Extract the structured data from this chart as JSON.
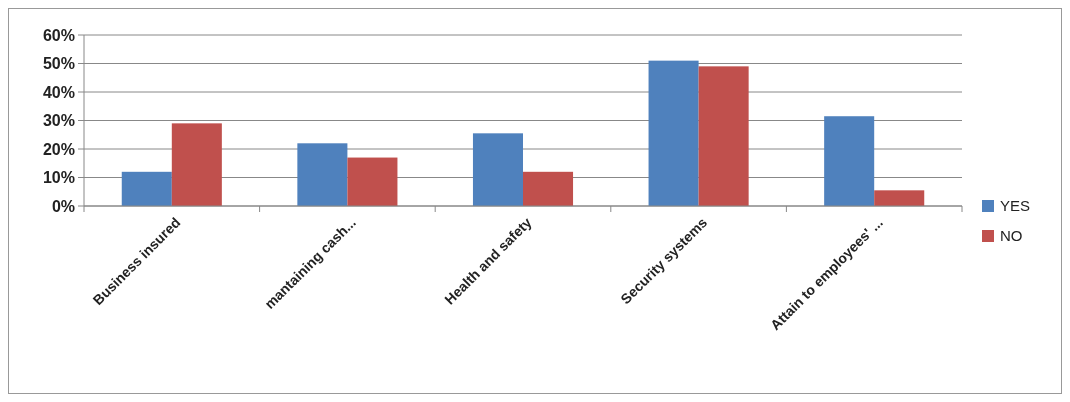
{
  "chart_data": {
    "type": "bar",
    "categories": [
      "Business insured",
      "mantaining cash...",
      "Health and safety",
      "Security systems",
      "Attain to employees' ..."
    ],
    "series": [
      {
        "name": "YES",
        "color": "#4f81bd",
        "values": [
          12,
          22,
          25.5,
          51,
          31.5
        ]
      },
      {
        "name": "NO",
        "color": "#c0504d",
        "values": [
          29,
          17,
          12,
          49,
          5.5
        ]
      }
    ],
    "ylim": [
      0,
      60
    ],
    "yticks": [
      {
        "value": 0,
        "label": "0%"
      },
      {
        "value": 10,
        "label": "10%"
      },
      {
        "value": 20,
        "label": "20%"
      },
      {
        "value": 30,
        "label": "30%"
      },
      {
        "value": 40,
        "label": "40%"
      },
      {
        "value": 50,
        "label": "50%"
      },
      {
        "value": 60,
        "label": "60%"
      }
    ],
    "grid": "y",
    "legend": "right"
  }
}
